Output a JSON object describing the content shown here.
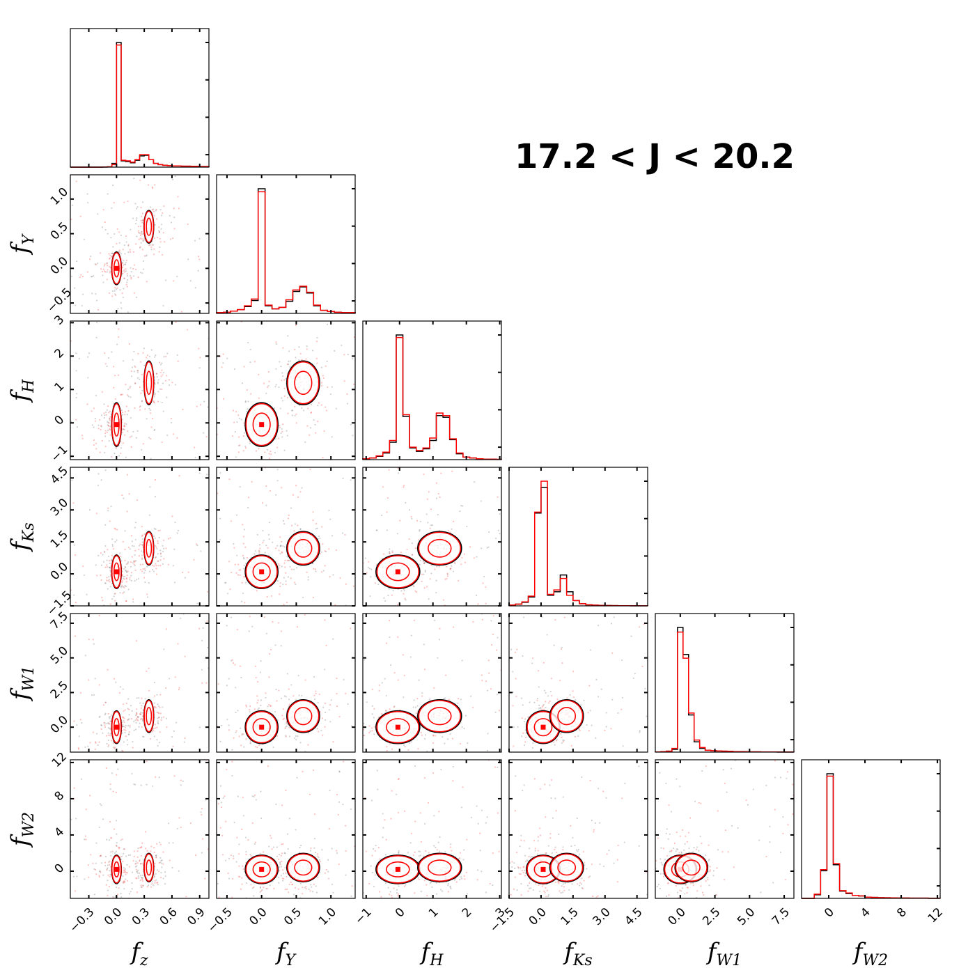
{
  "chart_data": {
    "type": "corner",
    "title": "17.2 < J < 20.2",
    "variables": [
      {
        "key": "z",
        "label": "f",
        "sub": "z",
        "range": [
          -0.5,
          1.0
        ],
        "ticks": [
          -0.3,
          0.0,
          0.3,
          0.6,
          0.9
        ],
        "tick_labels": [
          "−0.3",
          "0.0",
          "0.3",
          "0.6",
          "0.9"
        ]
      },
      {
        "key": "Y",
        "label": "f",
        "sub": "Y",
        "range": [
          -0.65,
          1.35
        ],
        "ticks": [
          -0.5,
          0.0,
          0.5,
          1.0
        ],
        "tick_labels": [
          "−0.5",
          "0.0",
          "0.5",
          "1.0"
        ]
      },
      {
        "key": "H",
        "label": "f",
        "sub": "H",
        "range": [
          -1.1,
          3.05
        ],
        "ticks": [
          -1,
          0,
          1,
          2,
          3
        ],
        "tick_labels": [
          "−1",
          "0",
          "1",
          "2",
          "3"
        ]
      },
      {
        "key": "Ks",
        "label": "f",
        "sub": "Ks",
        "range": [
          -1.5,
          5.0
        ],
        "ticks": [
          -1.5,
          0.0,
          1.5,
          3.0,
          4.5
        ],
        "tick_labels": [
          "−1.5",
          "0.0",
          "1.5",
          "3.0",
          "4.5"
        ]
      },
      {
        "key": "W1",
        "label": "f",
        "sub": "W1",
        "range": [
          -1.8,
          8.2
        ],
        "ticks": [
          0.0,
          2.5,
          5.0,
          7.5
        ],
        "tick_labels": [
          "0.0",
          "2.5",
          "5.0",
          "7.5"
        ]
      },
      {
        "key": "W2",
        "label": "f",
        "sub": "W2",
        "range": [
          -3.0,
          12.3
        ],
        "ticks": [
          0,
          4,
          8,
          12
        ],
        "tick_labels": [
          "0",
          "4",
          "8",
          "12"
        ]
      }
    ],
    "series": [
      {
        "name": "",
        "color": "#000000"
      },
      {
        "name": "",
        "color": "#ff0000"
      }
    ],
    "modes": [
      {
        "z": 0.0,
        "Y": 0.0,
        "H": -0.05,
        "Ks": 0.1,
        "W1": 0.0,
        "W2": 0.2
      },
      {
        "z": 0.35,
        "Y": 0.6,
        "H": 1.2,
        "Ks": 1.2,
        "W1": 0.8,
        "W2": 0.4
      }
    ],
    "histograms": {
      "z": {
        "bins": [
          -0.5,
          -0.45,
          -0.4,
          -0.35,
          -0.3,
          -0.25,
          -0.2,
          -0.15,
          -0.1,
          -0.05,
          0.0,
          0.05,
          0.1,
          0.15,
          0.2,
          0.25,
          0.3,
          0.35,
          0.4,
          0.45,
          0.5,
          0.55,
          0.6,
          0.65,
          0.7,
          0.75,
          0.8,
          0.85,
          0.9,
          0.95,
          1.0
        ],
        "black": [
          0,
          0,
          0,
          0,
          0,
          0,
          0,
          0.01,
          0.03,
          0.3,
          10.0,
          0.5,
          0.45,
          0.35,
          0.55,
          0.9,
          0.95,
          0.6,
          0.3,
          0.2,
          0.15,
          0.12,
          0.1,
          0.1,
          0.08,
          0.08,
          0.07,
          0.06,
          0.05,
          0.05
        ],
        "red": [
          0,
          0,
          0,
          0,
          0,
          0,
          0,
          0.01,
          0.02,
          0.2,
          9.8,
          0.55,
          0.5,
          0.4,
          0.6,
          1.0,
          1.0,
          0.6,
          0.3,
          0.2,
          0.15,
          0.12,
          0.1,
          0.1,
          0.08,
          0.08,
          0.07,
          0.06,
          0.05,
          0.05
        ]
      },
      "Y": {
        "bins": [
          -0.65,
          -0.55,
          -0.45,
          -0.35,
          -0.25,
          -0.15,
          -0.05,
          0.05,
          0.15,
          0.25,
          0.35,
          0.45,
          0.55,
          0.65,
          0.75,
          0.85,
          0.95,
          1.05,
          1.15,
          1.25,
          1.35
        ],
        "black": [
          0.1,
          0.15,
          0.3,
          0.5,
          0.9,
          1.7,
          16.5,
          1.0,
          0.6,
          0.8,
          1.6,
          2.9,
          3.5,
          2.7,
          1.0,
          0.4,
          0.25,
          0.15,
          0.1,
          0.1
        ],
        "red": [
          0.1,
          0.15,
          0.3,
          0.5,
          1.0,
          1.9,
          16.1,
          1.1,
          0.6,
          0.8,
          1.8,
          3.1,
          3.6,
          2.8,
          1.1,
          0.4,
          0.25,
          0.15,
          0.1,
          0.1
        ]
      },
      "H": {
        "bins": [
          -1.1,
          -0.9,
          -0.7,
          -0.5,
          -0.3,
          -0.1,
          0.1,
          0.3,
          0.5,
          0.7,
          0.9,
          1.1,
          1.3,
          1.5,
          1.7,
          1.9,
          2.1,
          2.3,
          2.5,
          2.7,
          2.9,
          3.05
        ],
        "black": [
          0.1,
          0.2,
          0.4,
          0.8,
          2.1,
          15.0,
          5.2,
          1.4,
          1.0,
          1.3,
          2.3,
          5.3,
          5.1,
          2.4,
          0.7,
          0.3,
          0.2,
          0.1,
          0.05,
          0.05,
          0.03
        ],
        "red": [
          0.1,
          0.2,
          0.45,
          0.9,
          2.3,
          14.7,
          5.4,
          1.5,
          1.1,
          1.4,
          2.6,
          5.6,
          5.3,
          2.5,
          0.8,
          0.3,
          0.2,
          0.1,
          0.05,
          0.05,
          0.03
        ]
      },
      "Ks": {
        "bins": [
          -1.5,
          -1.2,
          -0.9,
          -0.6,
          -0.3,
          0.0,
          0.3,
          0.6,
          0.9,
          1.2,
          1.5,
          1.8,
          2.1,
          2.4,
          2.7,
          3.0,
          3.3,
          3.6,
          3.9,
          4.2,
          4.5,
          4.8,
          5.0
        ],
        "black": [
          0.1,
          0.2,
          0.4,
          1.0,
          10.5,
          13.4,
          1.2,
          1.6,
          3.5,
          1.6,
          0.6,
          0.25,
          0.12,
          0.08,
          0.05,
          0.04,
          0.03,
          0.02,
          0.02,
          0.01,
          0.01,
          0.01
        ],
        "red": [
          0.1,
          0.2,
          0.45,
          1.1,
          10.6,
          14.1,
          1.3,
          1.8,
          3.1,
          1.2,
          0.6,
          0.25,
          0.12,
          0.08,
          0.05,
          0.04,
          0.03,
          0.02,
          0.02,
          0.01,
          0.01,
          0.01
        ]
      },
      "W1": {
        "bins": [
          -1.8,
          -1.4,
          -1.0,
          -0.6,
          -0.2,
          0.2,
          0.6,
          1.0,
          1.4,
          1.8,
          2.2,
          2.6,
          3.0,
          3.4,
          3.8,
          4.2,
          4.6,
          5.0,
          5.4,
          5.8,
          6.2,
          6.6,
          7.0,
          7.4,
          7.8,
          8.2
        ],
        "black": [
          0.02,
          0.05,
          0.1,
          0.3,
          13.4,
          10.5,
          4.0,
          1.1,
          0.4,
          0.2,
          0.15,
          0.12,
          0.1,
          0.08,
          0.06,
          0.05,
          0.04,
          0.03,
          0.03,
          0.02,
          0.02,
          0.02,
          0.01,
          0.01,
          0.01
        ],
        "red": [
          0.02,
          0.05,
          0.1,
          0.4,
          12.9,
          10.1,
          4.2,
          1.3,
          0.5,
          0.2,
          0.15,
          0.12,
          0.1,
          0.08,
          0.06,
          0.05,
          0.04,
          0.03,
          0.03,
          0.02,
          0.02,
          0.02,
          0.01,
          0.01,
          0.01
        ]
      },
      "W2": {
        "bins": [
          -3.0,
          -2.3,
          -1.6,
          -0.9,
          -0.2,
          0.5,
          1.2,
          1.9,
          2.6,
          3.3,
          4.0,
          4.7,
          5.4,
          6.1,
          6.8,
          7.5,
          8.2,
          8.9,
          9.6,
          10.3,
          11.0,
          11.7,
          12.3
        ],
        "black": [
          0.0,
          0.0,
          0.3,
          2.3,
          10.4,
          2.8,
          0.6,
          0.4,
          0.25,
          0.2,
          0.1,
          0.08,
          0.06,
          0.05,
          0.04,
          0.03,
          0.03,
          0.02,
          0.02,
          0.02,
          0.01,
          0.01
        ],
        "red": [
          0.0,
          0.0,
          0.35,
          2.4,
          10.2,
          2.9,
          0.65,
          0.45,
          0.25,
          0.2,
          0.1,
          0.08,
          0.06,
          0.05,
          0.04,
          0.03,
          0.03,
          0.02,
          0.02,
          0.02,
          0.01,
          0.01
        ]
      }
    },
    "grid": false,
    "legend": "none"
  }
}
